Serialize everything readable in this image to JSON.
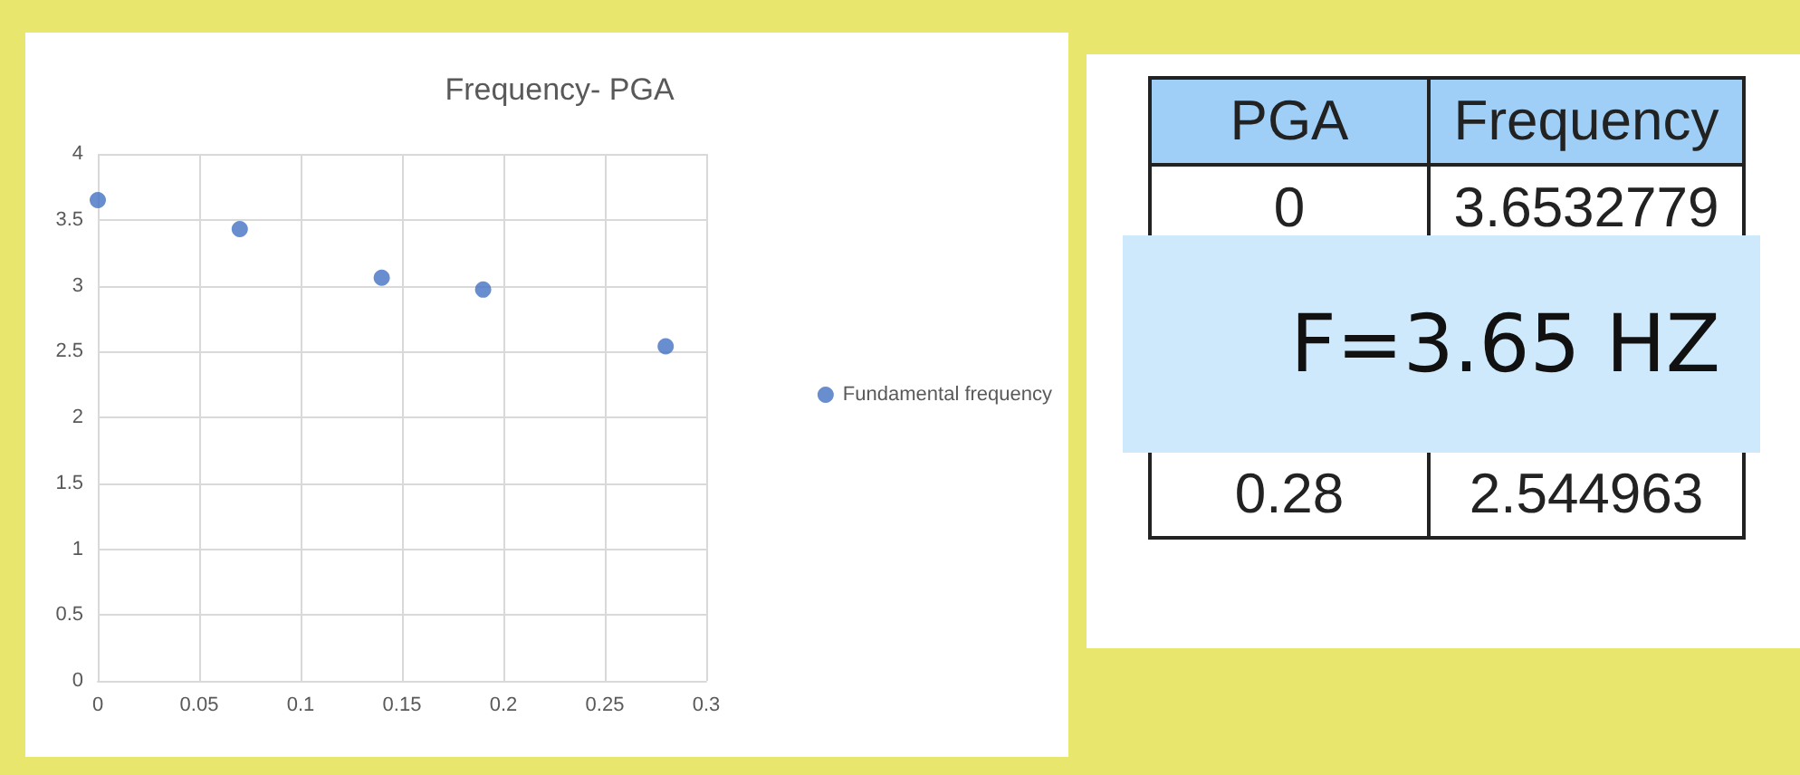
{
  "chart_data": [
    {
      "type": "scatter",
      "title": "Frequency- PGA",
      "x": [
        0,
        0.07,
        0.14,
        0.19,
        0.28
      ],
      "series": [
        {
          "name": "Fundamental frequency",
          "color": "#4472c4",
          "values": [
            3.65,
            3.43,
            3.06,
            2.97,
            2.54
          ]
        }
      ],
      "xlim": [
        0,
        0.3
      ],
      "xticks": [
        0,
        0.05,
        0.1,
        0.15,
        0.2,
        0.25,
        0.3
      ],
      "ylim": [
        0,
        4
      ],
      "yticks": [
        0,
        0.5,
        1,
        1.5,
        2,
        2.5,
        3,
        3.5,
        4
      ],
      "grid": true,
      "legend": "right",
      "marker": "circle"
    },
    {
      "type": "other",
      "annotations": [
        "PGA",
        "Frequency",
        "0",
        "3.6532779",
        "0.28",
        "2.544963",
        "F=3.65 HZ"
      ]
    }
  ]
}
